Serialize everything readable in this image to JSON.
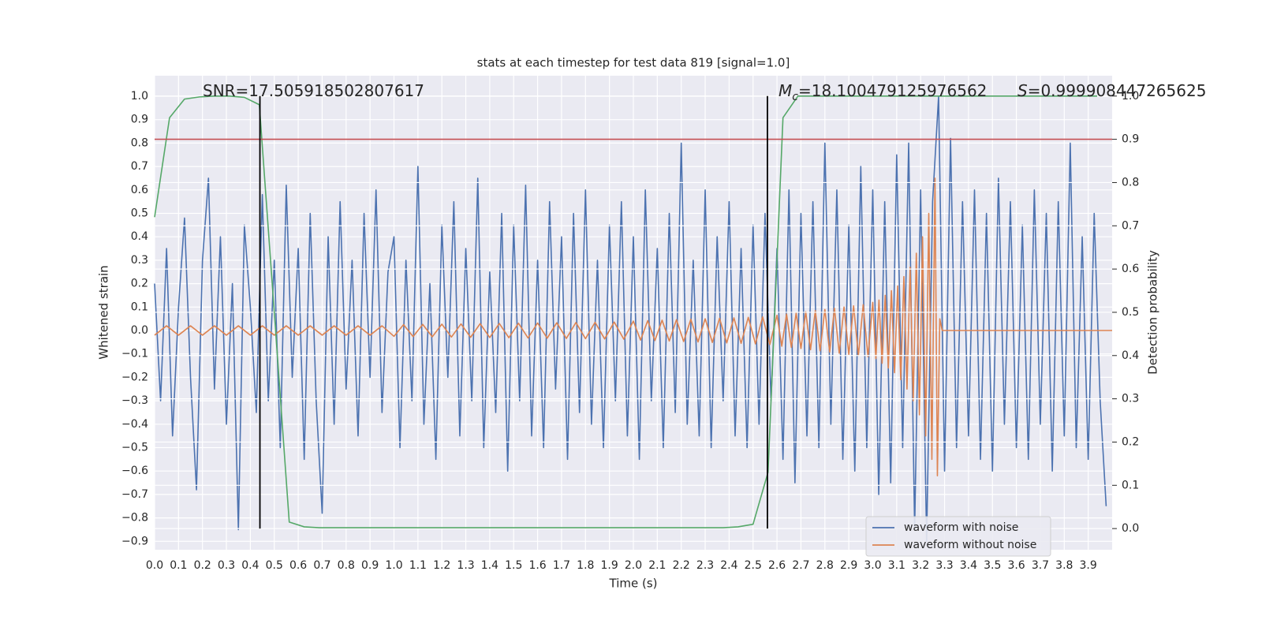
{
  "chart_data": {
    "type": "line",
    "title": "stats at each timestep for test data 819 [signal=1.0]",
    "xlabel": "Time (s)",
    "ylabel": "Whitened strain",
    "y2label": "Detection probability",
    "xlim": [
      0,
      4.0
    ],
    "ylim": [
      -0.936,
      1.0875
    ],
    "y2lim": [
      -0.049,
      1.047
    ],
    "grid": true,
    "background": "#eaeaf2",
    "legend": "lower right",
    "xticks": [
      {
        "value": 0,
        "label": "0.0"
      },
      0.1,
      0.2,
      0.3,
      0.4,
      0.5,
      0.6,
      0.7,
      0.8,
      0.9,
      {
        "value": 1,
        "label": "1.0"
      },
      1.1,
      1.2,
      1.3,
      1.4,
      1.5,
      1.6,
      1.7,
      1.8,
      1.9,
      {
        "value": 2,
        "label": "2.0"
      },
      2.1,
      2.2,
      2.3,
      2.4,
      2.5,
      2.6,
      2.7,
      2.8,
      2.9,
      {
        "value": 3,
        "label": "3.0"
      },
      3.1,
      3.2,
      3.3,
      3.4,
      3.5,
      3.6,
      3.7,
      3.8,
      3.9
    ],
    "yticks": [
      {
        "value": -0.9,
        "label": "−0.9"
      },
      {
        "value": -0.8,
        "label": "−0.8"
      },
      {
        "value": -0.7,
        "label": "−0.7"
      },
      {
        "value": -0.6,
        "label": "−0.6"
      },
      {
        "value": -0.5,
        "label": "−0.5"
      },
      {
        "value": -0.4,
        "label": "−0.4"
      },
      {
        "value": -0.3,
        "label": "−0.3"
      },
      {
        "value": -0.2,
        "label": "−0.2"
      },
      {
        "value": -0.1,
        "label": "−0.1"
      },
      {
        "value": 0,
        "label": "0.0"
      },
      0.1,
      0.2,
      0.3,
      0.4,
      0.5,
      0.6,
      0.7,
      0.8,
      0.9,
      {
        "value": 1,
        "label": "1.0"
      }
    ],
    "y2ticks": [
      {
        "value": 0,
        "label": "0.0"
      },
      0.1,
      0.2,
      0.3,
      0.4,
      0.5,
      0.6,
      0.7,
      0.8,
      0.9,
      {
        "value": 1,
        "label": "1.0"
      }
    ],
    "series": [
      {
        "name": "waveform with noise",
        "color": "#4c72b0",
        "x": [
          0,
          0.025,
          0.05,
          0.075,
          0.1,
          0.125,
          0.15,
          0.175,
          0.2,
          0.225,
          0.25,
          0.275,
          0.3,
          0.325,
          0.35,
          0.375,
          0.4,
          0.425,
          0.45,
          0.475,
          0.5,
          0.525,
          0.55,
          0.575,
          0.6,
          0.625,
          0.65,
          0.675,
          0.7,
          0.725,
          0.75,
          0.775,
          0.8,
          0.825,
          0.85,
          0.875,
          0.9,
          0.925,
          0.95,
          0.975,
          1.0,
          1.025,
          1.05,
          1.075,
          1.1,
          1.125,
          1.15,
          1.175,
          1.2,
          1.225,
          1.25,
          1.275,
          1.3,
          1.325,
          1.35,
          1.375,
          1.4,
          1.425,
          1.45,
          1.475,
          1.5,
          1.525,
          1.55,
          1.575,
          1.6,
          1.625,
          1.65,
          1.675,
          1.7,
          1.725,
          1.75,
          1.775,
          1.8,
          1.825,
          1.85,
          1.875,
          1.9,
          1.925,
          1.95,
          1.975,
          2.0,
          2.025,
          2.05,
          2.075,
          2.1,
          2.125,
          2.15,
          2.175,
          2.2,
          2.225,
          2.25,
          2.275,
          2.3,
          2.325,
          2.35,
          2.375,
          2.4,
          2.425,
          2.45,
          2.475,
          2.5,
          2.525,
          2.55,
          2.575,
          2.6,
          2.625,
          2.65,
          2.675,
          2.7,
          2.725,
          2.75,
          2.775,
          2.8,
          2.825,
          2.85,
          2.875,
          2.9,
          2.925,
          2.95,
          2.975,
          3.0,
          3.025,
          3.05,
          3.075,
          3.1,
          3.125,
          3.15,
          3.175,
          3.2,
          3.225,
          3.25,
          3.275,
          3.3,
          3.325,
          3.35,
          3.375,
          3.4,
          3.425,
          3.45,
          3.475,
          3.5,
          3.525,
          3.55,
          3.575,
          3.6,
          3.625,
          3.65,
          3.675,
          3.7,
          3.725,
          3.75,
          3.775,
          3.8,
          3.825,
          3.85,
          3.875,
          3.9,
          3.925,
          3.95,
          3.975
        ],
        "values": [
          0.2,
          -0.3,
          0.35,
          -0.45,
          0.1,
          0.48,
          -0.2,
          -0.68,
          0.3,
          0.65,
          -0.25,
          0.4,
          -0.4,
          0.2,
          -0.85,
          0.45,
          0.1,
          -0.35,
          0.58,
          -0.3,
          0.3,
          -0.5,
          0.62,
          -0.2,
          0.35,
          -0.55,
          0.5,
          -0.3,
          -0.78,
          0.4,
          -0.4,
          0.55,
          -0.25,
          0.3,
          -0.45,
          0.5,
          -0.2,
          0.6,
          -0.35,
          0.25,
          0.4,
          -0.5,
          0.3,
          -0.3,
          0.7,
          -0.4,
          0.2,
          -0.55,
          0.45,
          -0.2,
          0.55,
          -0.45,
          0.35,
          -0.3,
          0.65,
          -0.5,
          0.25,
          -0.35,
          0.5,
          -0.6,
          0.45,
          -0.3,
          0.62,
          -0.45,
          0.3,
          -0.5,
          0.55,
          -0.25,
          0.4,
          -0.55,
          0.5,
          -0.35,
          0.6,
          -0.4,
          0.3,
          -0.5,
          0.45,
          -0.3,
          0.55,
          -0.45,
          0.4,
          -0.55,
          0.6,
          -0.3,
          0.35,
          -0.5,
          0.5,
          -0.35,
          0.8,
          -0.4,
          0.3,
          -0.45,
          0.6,
          -0.5,
          0.4,
          -0.3,
          0.55,
          -0.45,
          0.35,
          -0.5,
          0.45,
          -0.4,
          0.5,
          -0.3,
          0.35,
          -0.55,
          0.6,
          -0.65,
          0.5,
          -0.45,
          0.55,
          -0.5,
          0.8,
          -0.4,
          0.6,
          -0.55,
          0.45,
          -0.6,
          0.7,
          -0.5,
          0.6,
          -0.7,
          0.55,
          -0.65,
          0.75,
          -0.5,
          0.8,
          -0.85,
          0.6,
          -0.9,
          0.55,
          1.0,
          -0.6,
          0.82,
          -0.5,
          0.55,
          -0.45,
          0.6,
          -0.55,
          0.5,
          -0.6,
          0.65,
          -0.4,
          0.55,
          -0.5,
          0.45,
          -0.55,
          0.6,
          -0.4,
          0.5,
          -0.6,
          0.55,
          -0.45,
          0.8,
          -0.5,
          0.4,
          -0.55,
          0.5,
          -0.3,
          -0.75
        ]
      },
      {
        "name": "waveform without noise",
        "color": "#dd8452",
        "x": [
          0,
          0.05,
          0.1,
          0.15,
          0.2,
          0.25,
          0.3,
          0.35,
          0.4,
          0.45,
          0.5,
          0.55,
          0.6,
          0.65,
          0.7,
          0.75,
          0.8,
          0.85,
          0.9,
          0.95,
          1.0,
          1.04,
          1.08,
          1.12,
          1.16,
          1.2,
          1.24,
          1.28,
          1.32,
          1.36,
          1.4,
          1.44,
          1.48,
          1.52,
          1.56,
          1.6,
          1.64,
          1.68,
          1.72,
          1.76,
          1.8,
          1.84,
          1.88,
          1.92,
          1.96,
          2.0,
          2.03,
          2.06,
          2.09,
          2.12,
          2.15,
          2.18,
          2.21,
          2.24,
          2.27,
          2.3,
          2.33,
          2.36,
          2.39,
          2.42,
          2.45,
          2.48,
          2.51,
          2.54,
          2.57,
          2.6,
          2.62,
          2.64,
          2.66,
          2.68,
          2.7,
          2.72,
          2.74,
          2.76,
          2.78,
          2.8,
          2.82,
          2.84,
          2.86,
          2.88,
          2.9,
          2.92,
          2.94,
          2.96,
          2.98,
          3.0,
          3.013,
          3.026,
          3.039,
          3.052,
          3.065,
          3.078,
          3.091,
          3.104,
          3.117,
          3.13,
          3.143,
          3.156,
          3.169,
          3.182,
          3.195,
          3.208,
          3.221,
          3.234,
          3.247,
          3.26,
          3.27,
          3.28,
          3.29,
          4.0
        ],
        "values": [
          -0.02,
          0.02,
          -0.02,
          0.02,
          -0.02,
          0.02,
          -0.02,
          0.02,
          -0.02,
          0.02,
          -0.02,
          0.02,
          -0.02,
          0.02,
          -0.02,
          0.02,
          -0.02,
          0.02,
          -0.02,
          0.02,
          -0.025,
          0.025,
          -0.026,
          0.026,
          -0.027,
          0.027,
          -0.028,
          0.028,
          -0.029,
          0.029,
          -0.03,
          0.03,
          -0.031,
          0.031,
          -0.032,
          0.032,
          -0.033,
          0.033,
          -0.034,
          0.034,
          -0.035,
          0.035,
          -0.036,
          0.036,
          -0.037,
          0.04,
          -0.041,
          0.042,
          -0.043,
          0.044,
          -0.045,
          0.046,
          -0.047,
          0.048,
          -0.049,
          0.05,
          -0.051,
          0.052,
          -0.053,
          0.054,
          -0.055,
          0.056,
          -0.057,
          0.058,
          -0.06,
          0.065,
          -0.067,
          0.07,
          -0.072,
          0.075,
          -0.077,
          0.08,
          -0.082,
          0.085,
          -0.087,
          0.09,
          -0.092,
          0.095,
          -0.097,
          0.1,
          -0.102,
          0.105,
          -0.107,
          0.11,
          -0.112,
          0.12,
          -0.12,
          0.13,
          -0.14,
          0.15,
          -0.16,
          0.17,
          -0.18,
          0.19,
          -0.21,
          0.23,
          -0.25,
          0.27,
          -0.3,
          0.33,
          -0.36,
          0.4,
          -0.45,
          0.5,
          -0.55,
          0.65,
          -0.62,
          0.05,
          0,
          0
        ]
      },
      {
        "color": "#55a868",
        "axis": "y2",
        "x": [
          0,
          0.0625,
          0.125,
          0.1875,
          0.25,
          0.3125,
          0.375,
          0.4375,
          0.5,
          0.5625,
          0.625,
          0.6875,
          0.75,
          0.8125,
          0.875,
          0.9375,
          1.0,
          1.0625,
          1.125,
          1.1875,
          1.25,
          1.3125,
          1.375,
          1.4375,
          1.5,
          1.5625,
          1.625,
          1.6875,
          1.75,
          1.8125,
          1.875,
          1.9375,
          2.0,
          2.0625,
          2.125,
          2.1875,
          2.25,
          2.3125,
          2.375,
          2.4375,
          2.5,
          2.5625,
          2.625,
          2.6875,
          2.75,
          2.8125,
          2.875,
          2.9375,
          3.0,
          3.0625,
          3.125,
          3.1875,
          3.25,
          3.3125,
          3.375,
          3.4375,
          3.5,
          3.5625,
          3.625,
          3.6875,
          3.75,
          3.8125,
          3.875,
          3.9375
        ],
        "values": [
          0.72,
          0.95,
          0.993,
          0.998,
          1.0,
          1.0,
          0.997,
          0.98,
          0.5,
          0.015,
          0.004,
          0.002,
          0.002,
          0.002,
          0.002,
          0.002,
          0.002,
          0.002,
          0.002,
          0.002,
          0.002,
          0.002,
          0.002,
          0.002,
          0.002,
          0.002,
          0.002,
          0.002,
          0.002,
          0.002,
          0.002,
          0.002,
          0.002,
          0.002,
          0.002,
          0.002,
          0.002,
          0.002,
          0.002,
          0.004,
          0.01,
          0.13,
          0.95,
          1.0,
          1.0,
          1.0,
          1.0,
          1.0,
          1.0,
          1.0,
          1.0,
          1.0,
          1.0,
          1.0,
          1.0,
          1.0,
          1.0,
          1.0,
          1.0,
          1.0,
          1.0,
          1.0,
          1.0,
          1.0
        ]
      }
    ],
    "hlines": [
      {
        "value": 0.9,
        "axis": "y2",
        "color": "#c44e52"
      }
    ],
    "vlines": [
      {
        "value": 0.44,
        "color": "#000000"
      },
      {
        "value": 2.56,
        "color": "#000000"
      }
    ],
    "annotations": [
      {
        "text": "SNR=17.505918502807617"
      },
      {
        "symbol": "M",
        "subscript": "c",
        "text": "=18.100479125976562"
      },
      {
        "symbol": "S",
        "text": "=0.999908447265625"
      }
    ]
  }
}
